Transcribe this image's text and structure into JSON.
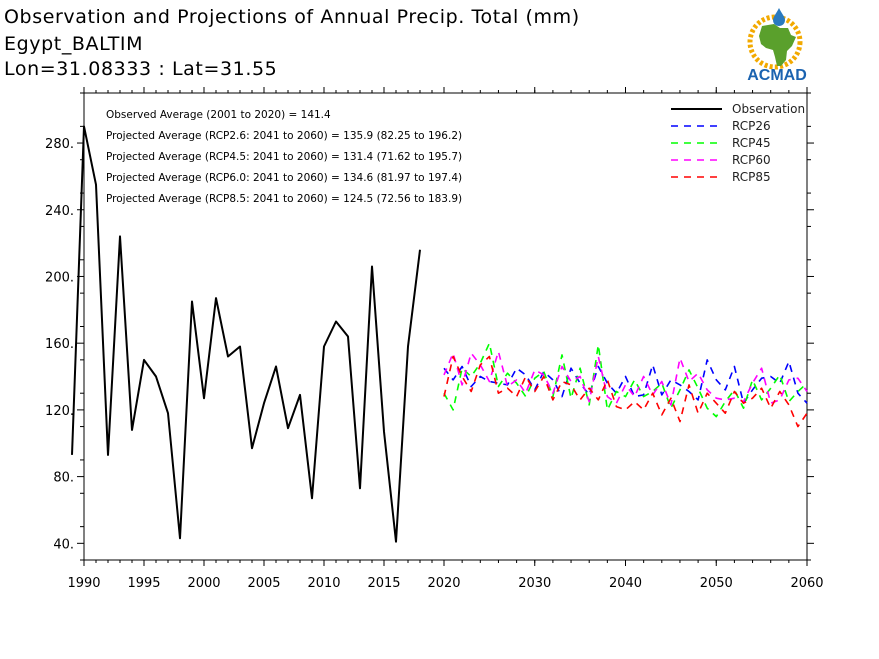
{
  "title": {
    "line1": "Observation and Projections of Annual Precip. Total (mm)",
    "line2": "Egypt_BALTIM",
    "line3": "Lon=31.08333 : Lat=31.55"
  },
  "logo": {
    "text": "ACMAD",
    "colors": {
      "africa": "#5aa02c",
      "ring": "#f2a900",
      "text": "#1b63b0",
      "drop": "#2a7ac0"
    }
  },
  "stats": [
    "Observed Average (2001 to 2020) = 141.4",
    "Projected Average (RCP2.6: 2041 to 2060) = 135.9 (82.25 to 196.2)",
    "Projected Average (RCP4.5: 2041 to 2060) = 131.4 (71.62 to 195.7)",
    "Projected Average (RCP6.0: 2041 to 2060) = 134.6 (81.97 to 197.4)",
    "Projected Average (RCP8.5: 2041 to 2060) = 124.5 (72.56 to 183.9)"
  ],
  "chart_data": {
    "type": "line",
    "xlim": [
      1989,
      2060
    ],
    "ylim": [
      30,
      310
    ],
    "x_ticks": [
      1990,
      1995,
      2000,
      2005,
      2010,
      2015,
      2020,
      2030,
      2040,
      2050,
      2060
    ],
    "x_tick_labels": [
      "1990",
      "1995",
      "2000",
      "2005",
      "2010",
      "2015",
      "2020",
      "2030",
      "2040",
      "2050",
      "2060"
    ],
    "y_ticks": [
      40,
      80,
      120,
      160,
      200,
      240,
      280
    ],
    "y_tick_labels": [
      "40.",
      "80.",
      "120.",
      "160.",
      "200.",
      "240.",
      "280."
    ],
    "legend_position": "top-right",
    "series": [
      {
        "name": "Observation",
        "color": "#000000",
        "dash": "solid",
        "x": [
          1989,
          1990,
          1991,
          1992,
          1993,
          1994,
          1995,
          1996,
          1997,
          1998,
          1999,
          2000,
          2001,
          2002,
          2003,
          2004,
          2005,
          2006,
          2007,
          2008,
          2009,
          2010,
          2011,
          2012,
          2013,
          2014,
          2015,
          2016,
          2017,
          2018,
          2019,
          2020
        ],
        "values": [
          93,
          290,
          255,
          93,
          224,
          108,
          150,
          140,
          118,
          43,
          185,
          127,
          187,
          152,
          158,
          97,
          124,
          146,
          109,
          129,
          67,
          158,
          173,
          164,
          73,
          206,
          107,
          41,
          158,
          216,
          null,
          null
        ]
      },
      {
        "name": "RCP26",
        "color": "#0000ff",
        "dash": "dashed",
        "x": [
          2020,
          2021,
          2022,
          2023,
          2024,
          2025,
          2026,
          2027,
          2028,
          2029,
          2030,
          2031,
          2032,
          2033,
          2034,
          2035,
          2036,
          2037,
          2038,
          2039,
          2040,
          2041,
          2042,
          2043,
          2044,
          2045,
          2046,
          2047,
          2048,
          2049,
          2050,
          2051,
          2052,
          2053,
          2054,
          2055,
          2056,
          2057,
          2058,
          2059,
          2060
        ],
        "values": [
          145,
          138,
          146,
          134,
          140,
          137,
          136,
          135,
          145,
          141,
          132,
          143,
          138,
          128,
          145,
          136,
          129,
          146,
          136,
          130,
          140,
          128,
          129,
          147,
          129,
          138,
          135,
          131,
          126,
          150,
          138,
          132,
          146,
          124,
          132,
          139,
          140,
          136,
          149,
          130,
          124
        ]
      },
      {
        "name": "RCP45",
        "color": "#00ff00",
        "dash": "dashed",
        "x": [
          2020,
          2021,
          2022,
          2023,
          2024,
          2025,
          2026,
          2027,
          2028,
          2029,
          2030,
          2031,
          2032,
          2033,
          2034,
          2035,
          2036,
          2037,
          2038,
          2039,
          2040,
          2041,
          2042,
          2043,
          2044,
          2045,
          2046,
          2047,
          2048,
          2049,
          2050,
          2051,
          2052,
          2053,
          2054,
          2055,
          2056,
          2057,
          2058,
          2059,
          2060
        ],
        "values": [
          130,
          120,
          145,
          140,
          148,
          160,
          134,
          142,
          136,
          128,
          139,
          143,
          128,
          153,
          127,
          145,
          123,
          159,
          120,
          131,
          128,
          138,
          128,
          131,
          136,
          121,
          132,
          144,
          133,
          121,
          116,
          125,
          132,
          121,
          138,
          126,
          133,
          141,
          125,
          131,
          136
        ]
      },
      {
        "name": "RCP60",
        "color": "#ff00ff",
        "dash": "dashed",
        "x": [
          2020,
          2021,
          2022,
          2023,
          2024,
          2025,
          2026,
          2027,
          2028,
          2029,
          2030,
          2031,
          2032,
          2033,
          2034,
          2035,
          2036,
          2037,
          2038,
          2039,
          2040,
          2041,
          2042,
          2043,
          2044,
          2045,
          2046,
          2047,
          2048,
          2049,
          2050,
          2051,
          2052,
          2053,
          2054,
          2055,
          2056,
          2057,
          2058,
          2059,
          2060
        ],
        "values": [
          141,
          154,
          135,
          154,
          147,
          137,
          155,
          134,
          138,
          130,
          144,
          141,
          130,
          146,
          137,
          140,
          125,
          152,
          128,
          124,
          135,
          128,
          140,
          129,
          137,
          123,
          151,
          137,
          142,
          132,
          127,
          126,
          127,
          125,
          136,
          145,
          124,
          126,
          138,
          139,
          131
        ]
      },
      {
        "name": "RCP85",
        "color": "#ff0000",
        "dash": "dashed",
        "x": [
          2020,
          2021,
          2022,
          2023,
          2024,
          2025,
          2026,
          2027,
          2028,
          2029,
          2030,
          2031,
          2032,
          2033,
          2034,
          2035,
          2036,
          2037,
          2038,
          2039,
          2040,
          2041,
          2042,
          2043,
          2044,
          2045,
          2046,
          2047,
          2048,
          2049,
          2050,
          2051,
          2052,
          2053,
          2054,
          2055,
          2056,
          2057,
          2058,
          2059,
          2060
        ],
        "values": [
          128,
          152,
          140,
          131,
          147,
          152,
          130,
          133,
          128,
          140,
          131,
          140,
          126,
          137,
          135,
          126,
          133,
          126,
          138,
          122,
          120,
          125,
          120,
          130,
          117,
          127,
          113,
          135,
          118,
          130,
          124,
          118,
          131,
          124,
          127,
          133,
          121,
          131,
          123,
          110,
          118
        ]
      }
    ]
  }
}
